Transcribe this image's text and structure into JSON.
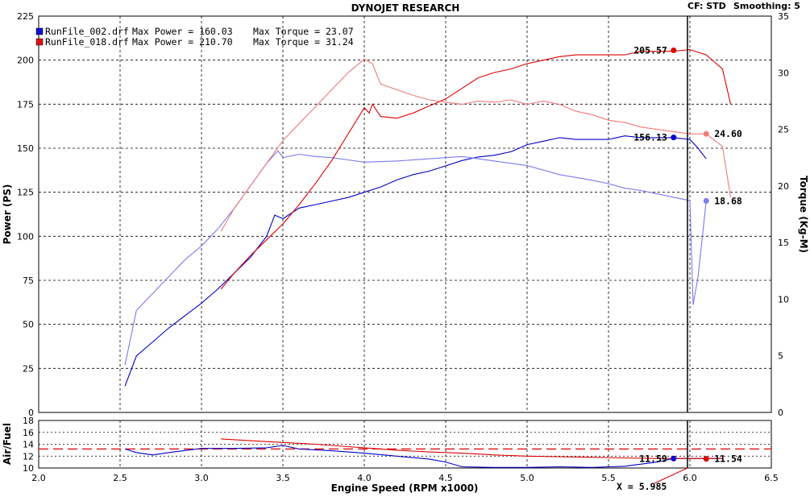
{
  "header": {
    "title": "DYNOJET RESEARCH",
    "cf": "CF: STD",
    "smoothing": "Smoothing: 5"
  },
  "legend": [
    {
      "file": "RunFile_002.drf",
      "power_text": "Max Power = 160.03",
      "torque_text": "Max Torque = 23.07",
      "color": "#1010d0"
    },
    {
      "file": "RunFile_018.drf",
      "power_text": "Max Power = 210.70",
      "torque_text": "Max Torque = 31.24",
      "color": "#e01010"
    }
  ],
  "cursor_readout": "X = 5.985",
  "colors": {
    "run002_power": "#0000c8",
    "run002_torque": "#7a7af0",
    "run018_power": "#dd0000",
    "run018_torque": "#f07a7a",
    "afr_reference": "#dd0000",
    "grid": "#000000"
  },
  "chart_data": [
    {
      "type": "line",
      "title": "DYNOJET RESEARCH",
      "xlabel": "Engine Speed (RPM x1000)",
      "ylabel": "Power (PS)",
      "y2label": "Torque (Kg-M)",
      "xlim": [
        2.0,
        6.5
      ],
      "ylim": [
        0,
        225
      ],
      "y2lim": [
        0,
        35
      ],
      "x_ticks": [
        "2.0",
        "2.5",
        "3.0",
        "3.5",
        "4.0",
        "4.5",
        "5.0",
        "5.5",
        "6.0",
        "6.5"
      ],
      "y_ticks": [
        "0",
        "25",
        "50",
        "75",
        "100",
        "125",
        "150",
        "175",
        "200",
        "225"
      ],
      "y2_ticks": [
        "0",
        "5",
        "10",
        "15",
        "20",
        "25",
        "30",
        "35"
      ],
      "grid": true,
      "cursor_x": 5.985,
      "series": [
        {
          "name": "RunFile_002.drf",
          "quantity": "power",
          "axis": "left",
          "x": [
            2.53,
            2.6,
            2.7,
            2.8,
            2.9,
            3.0,
            3.1,
            3.2,
            3.3,
            3.4,
            3.45,
            3.5,
            3.6,
            3.7,
            3.8,
            3.9,
            4.0,
            4.1,
            4.2,
            4.3,
            4.4,
            4.5,
            4.6,
            4.7,
            4.8,
            4.9,
            5.0,
            5.1,
            5.2,
            5.3,
            5.4,
            5.5,
            5.6,
            5.7,
            5.8,
            5.9,
            6.0,
            6.05,
            6.1
          ],
          "y": [
            15,
            32,
            40,
            48,
            55,
            62,
            70,
            79,
            88,
            100,
            112,
            110,
            116,
            118,
            120,
            122,
            125,
            128,
            132,
            135,
            137,
            140,
            143,
            145,
            146,
            148,
            152,
            154,
            156,
            155,
            155,
            155,
            157,
            156,
            156,
            156,
            155,
            150,
            144
          ]
        },
        {
          "name": "RunFile_002.drf",
          "quantity": "torque",
          "axis": "right",
          "x": [
            2.53,
            2.6,
            2.7,
            2.8,
            2.9,
            3.0,
            3.1,
            3.2,
            3.3,
            3.4,
            3.47,
            3.5,
            3.6,
            3.7,
            3.8,
            3.9,
            4.0,
            4.2,
            4.4,
            4.6,
            4.8,
            5.0,
            5.2,
            5.4,
            5.5,
            5.6,
            5.7,
            5.8,
            5.9,
            6.0,
            6.02,
            6.05,
            6.08,
            6.1
          ],
          "y": [
            4.2,
            9,
            10.5,
            12,
            13.5,
            14.7,
            16.2,
            18,
            20,
            22,
            23.1,
            22.5,
            22.8,
            22.6,
            22.5,
            22.3,
            22.1,
            22.2,
            22.4,
            22.6,
            22.2,
            21.8,
            21,
            20.5,
            20.2,
            19.8,
            19.6,
            19.3,
            19,
            18.7,
            9.5,
            12,
            16,
            18.68
          ]
        },
        {
          "name": "RunFile_018.drf",
          "quantity": "power",
          "axis": "left",
          "x": [
            3.12,
            3.2,
            3.3,
            3.4,
            3.5,
            3.6,
            3.7,
            3.8,
            3.9,
            4.0,
            4.03,
            4.05,
            4.1,
            4.2,
            4.3,
            4.4,
            4.5,
            4.6,
            4.7,
            4.8,
            4.9,
            5.0,
            5.1,
            5.2,
            5.3,
            5.4,
            5.5,
            5.6,
            5.7,
            5.8,
            5.9,
            6.0,
            6.1,
            6.2,
            6.25
          ],
          "y": [
            70,
            79,
            89,
            98,
            107,
            118,
            130,
            143,
            158,
            173,
            170,
            175,
            168,
            167,
            170,
            174,
            178,
            184,
            190,
            193,
            195,
            198,
            200,
            202,
            203,
            203,
            203,
            203,
            205,
            205,
            205,
            206,
            203,
            195,
            175
          ]
        },
        {
          "name": "RunFile_018.drf",
          "quantity": "torque",
          "axis": "right",
          "x": [
            3.12,
            3.2,
            3.3,
            3.4,
            3.5,
            3.6,
            3.7,
            3.8,
            3.9,
            4.0,
            4.05,
            4.1,
            4.2,
            4.3,
            4.4,
            4.5,
            4.6,
            4.7,
            4.8,
            4.9,
            5.0,
            5.1,
            5.2,
            5.3,
            5.4,
            5.5,
            5.6,
            5.7,
            5.8,
            5.9,
            6.0,
            6.1,
            6.2,
            6.25
          ],
          "y": [
            16,
            18,
            20,
            22,
            24,
            25.5,
            27,
            28.5,
            30,
            31.2,
            30.8,
            29,
            28.5,
            28,
            27.6,
            27.4,
            27.2,
            27.5,
            27.4,
            27.6,
            27.2,
            27.5,
            27.2,
            26.6,
            26.3,
            25.8,
            25.6,
            25.2,
            25,
            24.8,
            24.6,
            24.6,
            23.5,
            19
          ]
        }
      ],
      "markers": [
        {
          "label": "205.57",
          "x": 5.9,
          "y": 205.57,
          "axis": "left",
          "series": "RunFile_018.drf"
        },
        {
          "label": "156.13",
          "x": 5.9,
          "y": 156.13,
          "axis": "left",
          "series": "RunFile_002.drf"
        },
        {
          "label": "24.60",
          "x": 6.1,
          "y": 24.6,
          "axis": "right",
          "series": "RunFile_018.drf"
        },
        {
          "label": "18.68",
          "x": 6.1,
          "y": 18.68,
          "axis": "right",
          "series": "RunFile_002.drf"
        }
      ]
    },
    {
      "type": "line",
      "ylabel": "Air/Fuel",
      "xlabel": "Engine Speed (RPM x1000)",
      "xlim": [
        2.0,
        6.5
      ],
      "ylim": [
        10,
        18
      ],
      "y_ticks": [
        "10",
        "12",
        "14",
        "16",
        "18"
      ],
      "reference_line": 13.2,
      "grid": true,
      "series": [
        {
          "name": "RunFile_002.drf",
          "x": [
            2.53,
            2.6,
            2.7,
            2.8,
            3.0,
            3.2,
            3.4,
            3.5,
            3.6,
            3.8,
            4.0,
            4.2,
            4.4,
            4.5,
            4.6,
            4.8,
            5.0,
            5.2,
            5.4,
            5.6,
            5.8,
            5.9,
            6.0,
            6.1,
            6.2
          ],
          "y": [
            13.2,
            12.6,
            12.2,
            12.6,
            13.3,
            13.3,
            13.4,
            13.8,
            13.2,
            12.9,
            12.5,
            12.0,
            11.5,
            11,
            10.2,
            10.1,
            10.1,
            10.2,
            10.1,
            10.3,
            11.0,
            11.6,
            11.6,
            11.6,
            11.6
          ]
        },
        {
          "name": "RunFile_018.drf",
          "x": [
            3.12,
            3.3,
            3.5,
            3.7,
            3.9,
            4.0,
            4.2,
            4.4,
            4.6,
            4.8,
            5.0,
            5.2,
            5.4,
            5.6,
            5.8,
            5.9,
            6.0,
            6.1,
            6.2
          ],
          "y": [
            14.9,
            14.6,
            14.3,
            14.0,
            13.6,
            13.4,
            13.0,
            12.7,
            12.5,
            12.2,
            12.0,
            11.9,
            11.8,
            11.7,
            11.6,
            11.6,
            11.6,
            11.6,
            11.6
          ]
        }
      ],
      "markers": [
        {
          "label": "11.59",
          "x": 5.9,
          "y": 11.59,
          "series": "RunFile_002.drf"
        },
        {
          "label": "11.54",
          "x": 6.1,
          "y": 11.54,
          "series": "RunFile_018.drf"
        }
      ]
    }
  ]
}
